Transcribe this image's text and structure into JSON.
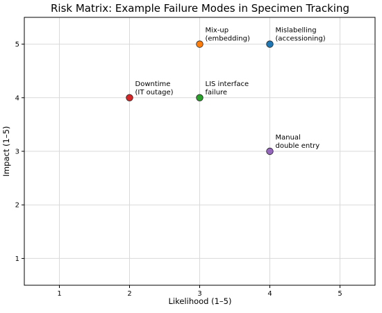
{
  "chart_data": {
    "type": "scatter",
    "title": "Risk Matrix: Example Failure Modes in Specimen Tracking",
    "xlabel": "Likelihood (1–5)",
    "ylabel": "Impact (1–5)",
    "xlim": [
      0.5,
      5.5
    ],
    "ylim": [
      0.5,
      5.5
    ],
    "xticks": [
      "1",
      "2",
      "3",
      "4",
      "5"
    ],
    "yticks": [
      "1",
      "2",
      "3",
      "4",
      "5"
    ],
    "grid": true,
    "points": [
      {
        "x": 4,
        "y": 5,
        "label": [
          "Mislabelling",
          "(accessioning)"
        ],
        "color": "#1f77b4"
      },
      {
        "x": 3,
        "y": 5,
        "label": [
          "Mix-up",
          "(embedding)"
        ],
        "color": "#ff7f0e"
      },
      {
        "x": 3,
        "y": 4,
        "label": [
          "LIS interface",
          "failure"
        ],
        "color": "#2ca02c"
      },
      {
        "x": 2,
        "y": 4,
        "label": [
          "Downtime",
          "(IT outage)"
        ],
        "color": "#d62728"
      },
      {
        "x": 4,
        "y": 3,
        "label": [
          "Manual",
          "double entry"
        ],
        "color": "#9467bd"
      }
    ]
  }
}
